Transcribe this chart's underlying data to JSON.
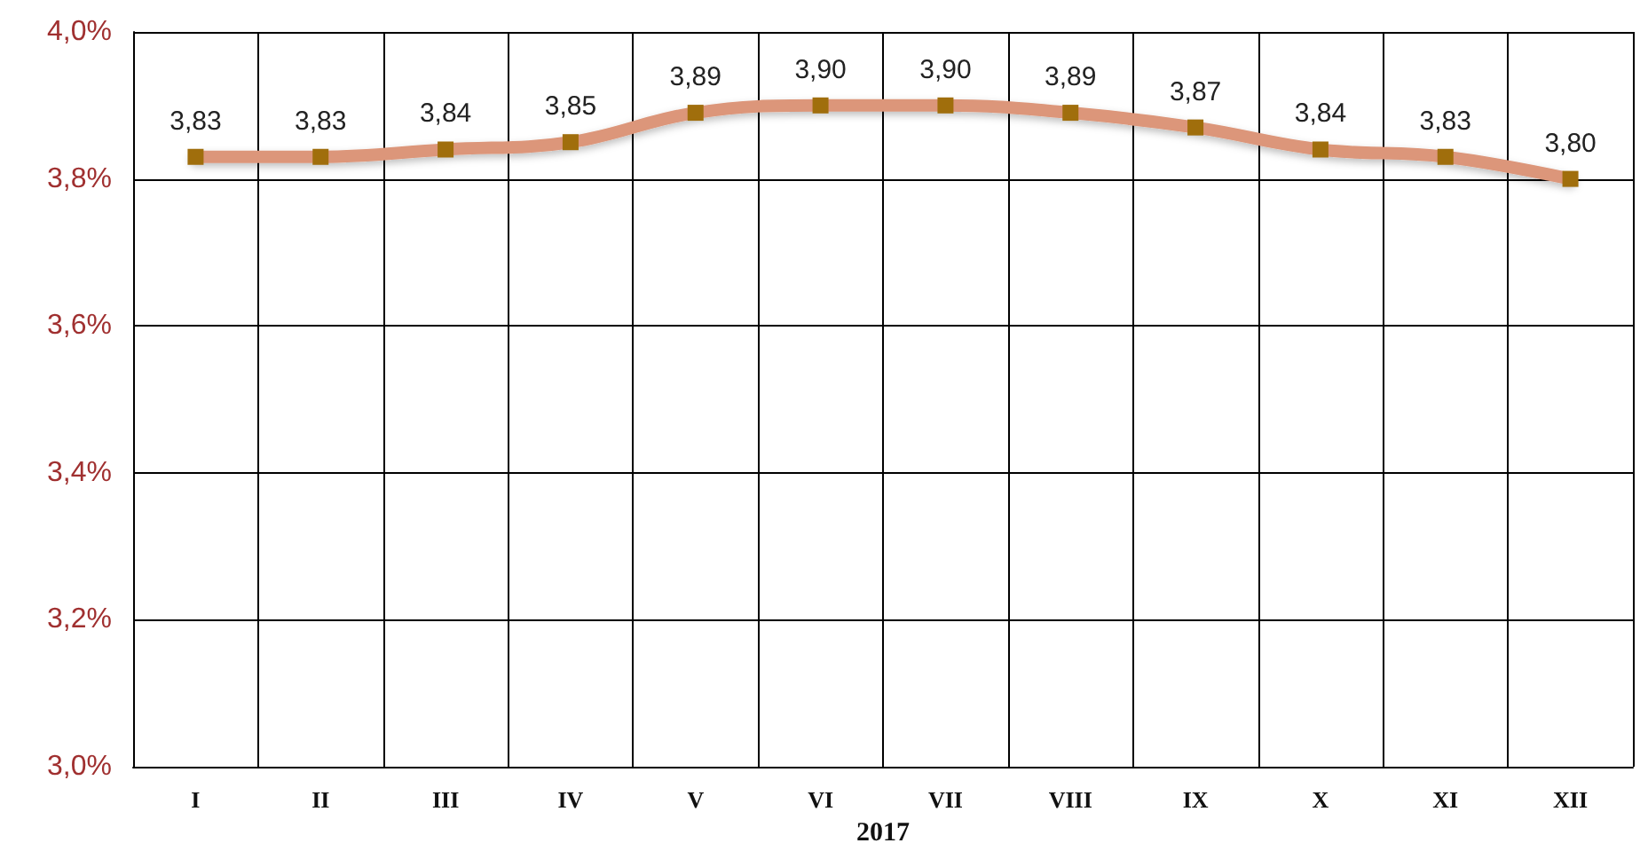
{
  "chart_data": {
    "type": "line",
    "xlabel": "2017",
    "categories": [
      "I",
      "II",
      "III",
      "IV",
      "V",
      "VI",
      "VII",
      "VIII",
      "IX",
      "X",
      "XI",
      "XII"
    ],
    "series": [
      {
        "color": "#dc967a",
        "values": [
          3.83,
          3.83,
          3.84,
          3.85,
          3.89,
          3.9,
          3.9,
          3.89,
          3.87,
          3.84,
          3.83,
          3.8
        ],
        "value_labels": [
          "3,83",
          "3,83",
          "3,84",
          "3,85",
          "3,89",
          "3,90",
          "3,90",
          "3,89",
          "3,87",
          "3,84",
          "3,83",
          "3,80"
        ]
      }
    ],
    "ylim": [
      3.0,
      4.0
    ],
    "yticks": [
      {
        "value": 3.0,
        "label": "3,0%"
      },
      {
        "value": 3.2,
        "label": "3,2%"
      },
      {
        "value": 3.4,
        "label": "3,4%"
      },
      {
        "value": 3.6,
        "label": "3,6%"
      },
      {
        "value": 3.8,
        "label": "3,8%"
      },
      {
        "value": 4.0,
        "label": "4,0%"
      }
    ],
    "grid": true,
    "marker": "square",
    "line_style": "solid"
  }
}
